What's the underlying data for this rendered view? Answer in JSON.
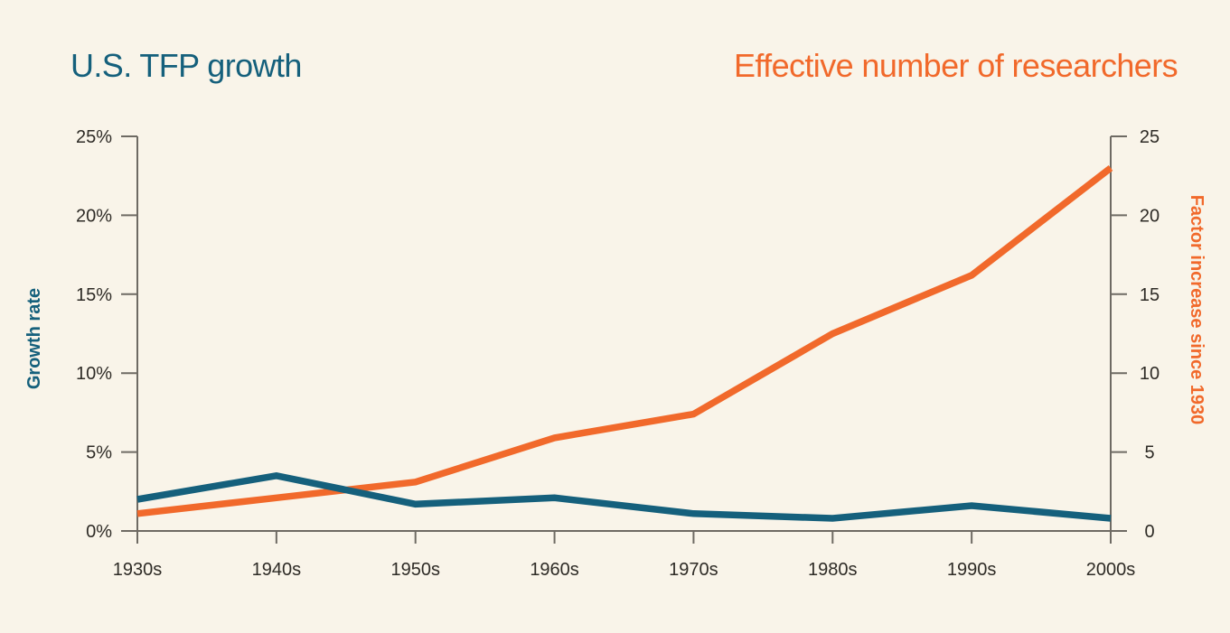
{
  "titles": {
    "left": {
      "text": "U.S. TFP growth",
      "color": "#15607c"
    },
    "right": {
      "text": "Effective number of researchers",
      "color": "#f1692b"
    }
  },
  "chart_data": {
    "type": "line",
    "categories": [
      "1930s",
      "1940s",
      "1950s",
      "1960s",
      "1970s",
      "1980s",
      "1990s",
      "2000s"
    ],
    "series": [
      {
        "name": "U.S. TFP growth",
        "axis": "left",
        "color": "#15607c",
        "values": [
          2.0,
          3.5,
          1.7,
          2.1,
          1.1,
          0.8,
          1.6,
          0.8
        ]
      },
      {
        "name": "Effective number of researchers",
        "axis": "right",
        "color": "#f1692b",
        "values": [
          1.1,
          2.1,
          3.1,
          5.9,
          7.4,
          12.5,
          16.2,
          23.0
        ]
      }
    ],
    "left_axis": {
      "title": "Growth rate",
      "color": "#15607c",
      "min": 0,
      "max": 25,
      "tick_step": 5,
      "tick_labels": [
        "0%",
        "5%",
        "10%",
        "15%",
        "20%",
        "25%"
      ]
    },
    "right_axis": {
      "title": "Factor increase since 1930",
      "color": "#f1692b",
      "min": 0,
      "max": 25,
      "tick_step": 5,
      "tick_labels": [
        "0",
        "5",
        "10",
        "15",
        "20",
        "25"
      ]
    },
    "x_axis": {
      "tick_labels": [
        "1930s",
        "1940s",
        "1950s",
        "1960s",
        "1970s",
        "1980s",
        "1990s",
        "2000s"
      ]
    },
    "grid": false,
    "legend_position": "colored-titles-above-chart"
  },
  "style": {
    "background": "#f9f4e9",
    "axis_line_color": "#6e6a63",
    "tick_label_color": "#2e2b26"
  }
}
